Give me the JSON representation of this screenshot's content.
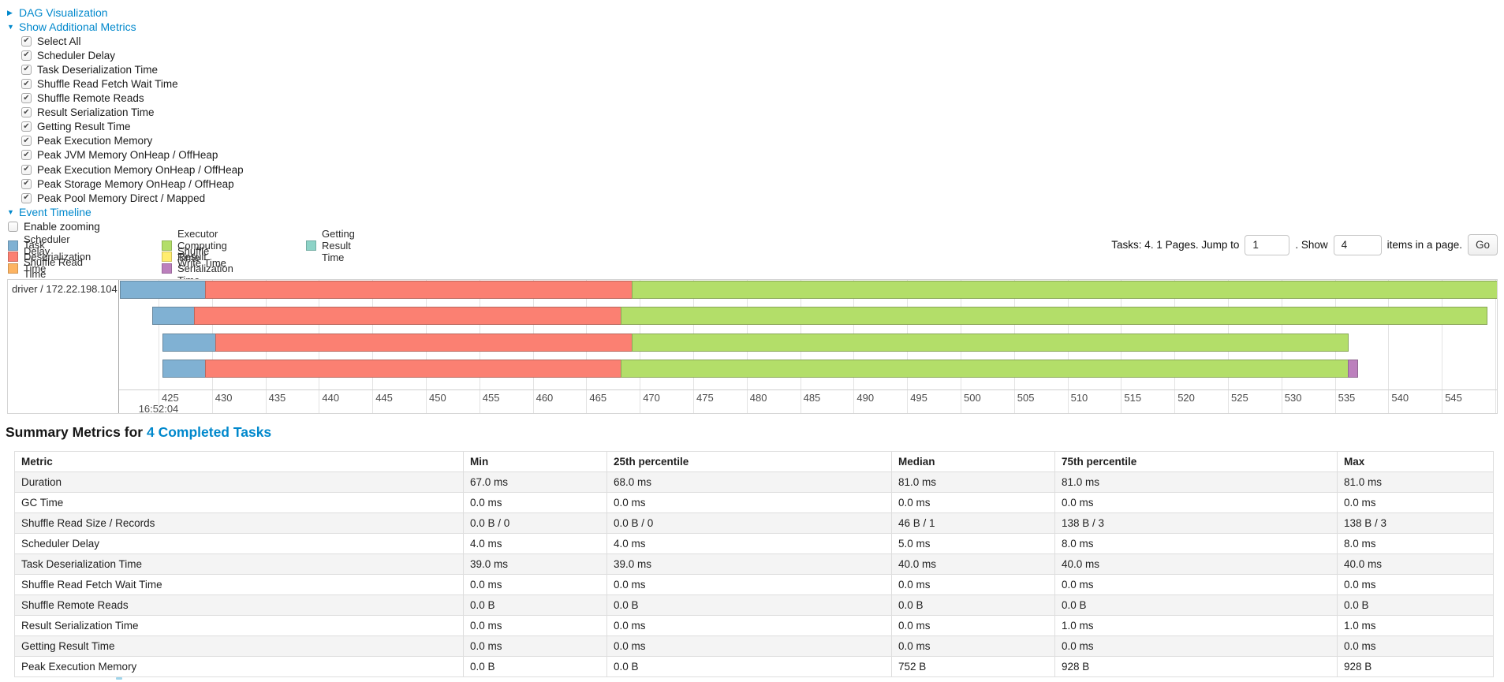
{
  "colors": {
    "link": "#0088cc",
    "scheduler_delay": "#80B1D3",
    "task_deserialization": "#FB8072",
    "shuffle_read": "#FDB462",
    "executor_computing": "#B3DE69",
    "shuffle_write": "#FFED6F",
    "result_serialization": "#BC80BD",
    "getting_result": "#8DD3C7"
  },
  "controls": {
    "dag": {
      "label": "DAG Visualization",
      "collapsed": true
    },
    "additional_metrics": {
      "label": "Show Additional Metrics",
      "collapsed": false,
      "items": [
        {
          "label": "Select All",
          "checked": true
        },
        {
          "label": "Scheduler Delay",
          "checked": true
        },
        {
          "label": "Task Deserialization Time",
          "checked": true
        },
        {
          "label": "Shuffle Read Fetch Wait Time",
          "checked": true
        },
        {
          "label": "Shuffle Remote Reads",
          "checked": true
        },
        {
          "label": "Result Serialization Time",
          "checked": true
        },
        {
          "label": "Getting Result Time",
          "checked": true
        },
        {
          "label": "Peak Execution Memory",
          "checked": true
        },
        {
          "label": "Peak JVM Memory OnHeap / OffHeap",
          "checked": true
        },
        {
          "label": "Peak Execution Memory OnHeap / OffHeap",
          "checked": true
        },
        {
          "label": "Peak Storage Memory OnHeap / OffHeap",
          "checked": true
        },
        {
          "label": "Peak Pool Memory Direct / Mapped",
          "checked": true
        }
      ]
    },
    "event_timeline": {
      "label": "Event Timeline",
      "collapsed": false
    },
    "enable_zooming": {
      "label": "Enable zooming",
      "checked": false
    }
  },
  "legend": {
    "columns": [
      [
        {
          "key": "scheduler_delay",
          "label": "Scheduler Delay"
        },
        {
          "key": "task_deserialization",
          "label": "Task Deserialization Time"
        },
        {
          "key": "shuffle_read",
          "label": "Shuffle Read Time"
        }
      ],
      [
        {
          "key": "executor_computing",
          "label": "Executor Computing Time"
        },
        {
          "key": "shuffle_write",
          "label": "Shuffle Write Time"
        },
        {
          "key": "result_serialization",
          "label": "Result Serialization Time"
        }
      ],
      [
        {
          "key": "getting_result",
          "label": "Getting Result Time"
        }
      ]
    ]
  },
  "pagination": {
    "prefix": "Tasks: 4. 1 Pages. Jump to",
    "jump_value": "1",
    "middle": ". Show",
    "show_value": "4",
    "suffix": "items in a page.",
    "go_label": "Go"
  },
  "chart_data": {
    "type": "timeline-gantt",
    "group_label": "driver / 172.22.198.104",
    "x_axis": {
      "tick_start": 425,
      "tick_end": 550,
      "tick_step": 5,
      "unit": "ms",
      "major_time_label": "16:52:04",
      "grid": true
    },
    "tasks": [
      {
        "start_ms": 421.4,
        "segments": [
          {
            "type": "scheduler_delay",
            "ms": 8
          },
          {
            "type": "task_deserialization",
            "ms": 40
          },
          {
            "type": "executor_computing",
            "ms": 81
          }
        ]
      },
      {
        "start_ms": 424.4,
        "segments": [
          {
            "type": "scheduler_delay",
            "ms": 4
          },
          {
            "type": "task_deserialization",
            "ms": 40
          },
          {
            "type": "executor_computing",
            "ms": 81
          }
        ]
      },
      {
        "start_ms": 425.4,
        "segments": [
          {
            "type": "scheduler_delay",
            "ms": 5
          },
          {
            "type": "task_deserialization",
            "ms": 39
          },
          {
            "type": "executor_computing",
            "ms": 67
          }
        ]
      },
      {
        "start_ms": 425.4,
        "segments": [
          {
            "type": "scheduler_delay",
            "ms": 4
          },
          {
            "type": "task_deserialization",
            "ms": 39
          },
          {
            "type": "executor_computing",
            "ms": 68
          },
          {
            "type": "result_serialization",
            "ms": 1
          }
        ]
      }
    ]
  },
  "summary_table": {
    "title_prefix": "Summary Metrics for",
    "title_link": "4 Completed Tasks",
    "columns": [
      "Metric",
      "Min",
      "25th percentile",
      "Median",
      "75th percentile",
      "Max"
    ],
    "rows": [
      [
        "Duration",
        "67.0 ms",
        "68.0 ms",
        "81.0 ms",
        "81.0 ms",
        "81.0 ms"
      ],
      [
        "GC Time",
        "0.0 ms",
        "0.0 ms",
        "0.0 ms",
        "0.0 ms",
        "0.0 ms"
      ],
      [
        "Shuffle Read Size / Records",
        "0.0 B / 0",
        "0.0 B / 0",
        "46 B / 1",
        "138 B / 3",
        "138 B / 3"
      ],
      [
        "Scheduler Delay",
        "4.0 ms",
        "4.0 ms",
        "5.0 ms",
        "8.0 ms",
        "8.0 ms"
      ],
      [
        "Task Deserialization Time",
        "39.0 ms",
        "39.0 ms",
        "40.0 ms",
        "40.0 ms",
        "40.0 ms"
      ],
      [
        "Shuffle Read Fetch Wait Time",
        "0.0 ms",
        "0.0 ms",
        "0.0 ms",
        "0.0 ms",
        "0.0 ms"
      ],
      [
        "Shuffle Remote Reads",
        "0.0 B",
        "0.0 B",
        "0.0 B",
        "0.0 B",
        "0.0 B"
      ],
      [
        "Result Serialization Time",
        "0.0 ms",
        "0.0 ms",
        "0.0 ms",
        "1.0 ms",
        "1.0 ms"
      ],
      [
        "Getting Result Time",
        "0.0 ms",
        "0.0 ms",
        "0.0 ms",
        "0.0 ms",
        "0.0 ms"
      ],
      [
        "Peak Execution Memory",
        "0.0 B",
        "0.0 B",
        "752 B",
        "928 B",
        "928 B"
      ]
    ]
  }
}
